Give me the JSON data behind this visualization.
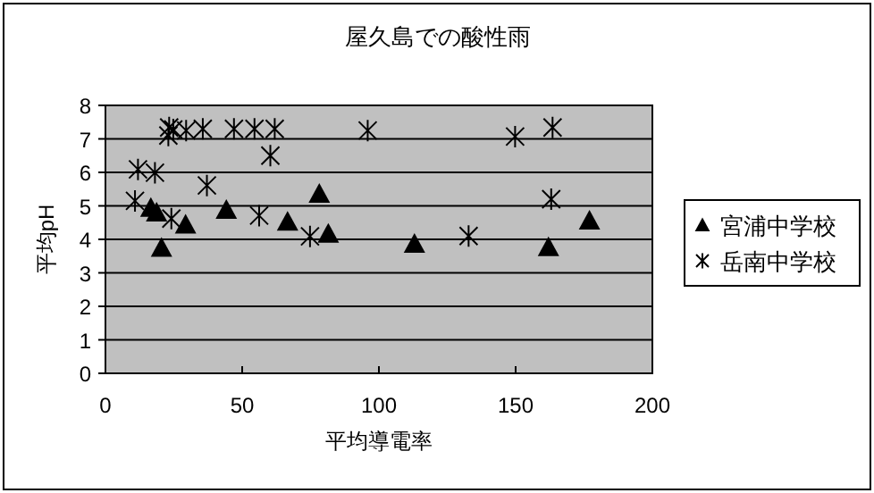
{
  "chart_data": {
    "type": "scatter",
    "title": "屋久島での酸性雨",
    "xlabel": "平均導電率",
    "ylabel": "平均pH",
    "xlim": [
      0,
      200
    ],
    "xticks": [
      0,
      50,
      100,
      150,
      200
    ],
    "ylim": [
      0,
      8
    ],
    "yticks": [
      0,
      1,
      2,
      3,
      4,
      5,
      6,
      7,
      8
    ],
    "grid": "y",
    "legend": "right",
    "series": [
      {
        "name": "宮浦中学校",
        "color": "#000000",
        "marker": "triangle",
        "x": [
          16.6,
          18.7,
          20.5,
          29.3,
          44.2,
          66.6,
          78.2,
          81.5,
          113,
          162,
          177
        ],
        "values": [
          4.94,
          4.8,
          3.75,
          4.44,
          4.88,
          4.53,
          5.36,
          4.17,
          3.87,
          3.77,
          4.56
        ]
      },
      {
        "name": "岳南中学校",
        "color": "#000000",
        "marker": "cross",
        "x": [
          10.8,
          11.9,
          18.1,
          23.3,
          23,
          24.8,
          29.5,
          35.6,
          47,
          54.5,
          61.9,
          60.3,
          37.1,
          24.1,
          56.2,
          74.8,
          95.9,
          149.8,
          163.5,
          163,
          132.8
        ],
        "values": [
          5.15,
          6.09,
          5.99,
          7.34,
          7.1,
          7.28,
          7.25,
          7.3,
          7.3,
          7.3,
          7.3,
          6.5,
          5.61,
          4.62,
          4.71,
          4.09,
          7.25,
          7.07,
          7.34,
          5.2,
          4.1
        ]
      }
    ]
  }
}
